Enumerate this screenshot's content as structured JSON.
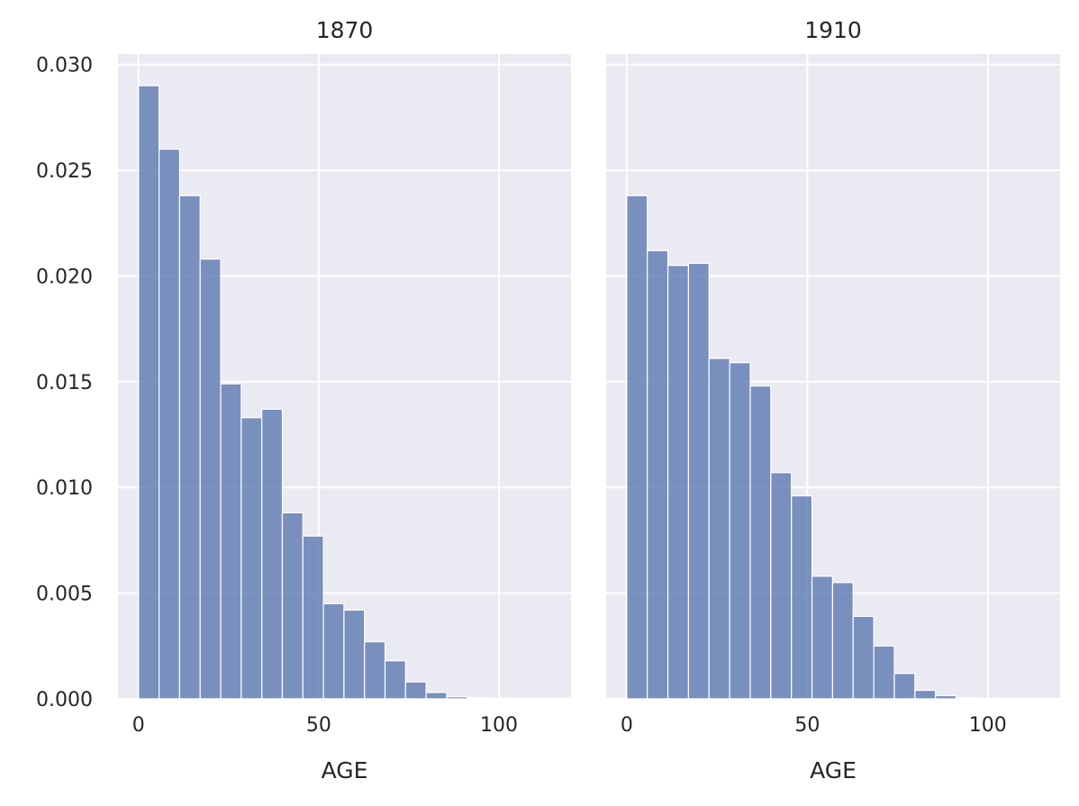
{
  "chart_data": {
    "type": "bar",
    "subtype": "faceted histogram",
    "bin_width": 5.7,
    "x_bins": [
      0,
      5.7,
      11.4,
      17.1,
      22.8,
      28.5,
      34.2,
      39.9,
      45.6,
      51.3,
      57.0,
      62.7,
      68.4,
      74.1,
      79.8,
      85.5,
      91.2,
      96.9,
      102.6,
      108.3,
      114.0
    ],
    "xlim": [
      -5.7,
      120
    ],
    "ylim": [
      0,
      0.0305
    ],
    "xticks": [
      "0",
      "50",
      "100"
    ],
    "yticks": [
      "0.000",
      "0.005",
      "0.010",
      "0.015",
      "0.020",
      "0.025",
      "0.030"
    ],
    "xlabel": "AGE",
    "ylabel": "",
    "grid": true,
    "bar_color": "#5875b0",
    "background_color": "#eaeaf2",
    "panels": [
      {
        "title": "1870",
        "values": [
          0.029,
          0.026,
          0.0238,
          0.0208,
          0.0149,
          0.0133,
          0.0137,
          0.0088,
          0.0077,
          0.0045,
          0.0042,
          0.0027,
          0.0018,
          0.0008,
          0.0003,
          0.0001,
          5e-05,
          3e-05,
          1e-05,
          0.0
        ]
      },
      {
        "title": "1910",
        "values": [
          0.0238,
          0.0212,
          0.0205,
          0.0206,
          0.0161,
          0.0159,
          0.0148,
          0.0107,
          0.0096,
          0.0058,
          0.0055,
          0.0039,
          0.0025,
          0.0012,
          0.0004,
          0.00015,
          5e-05,
          2e-05,
          1e-05,
          0.0
        ]
      }
    ]
  }
}
